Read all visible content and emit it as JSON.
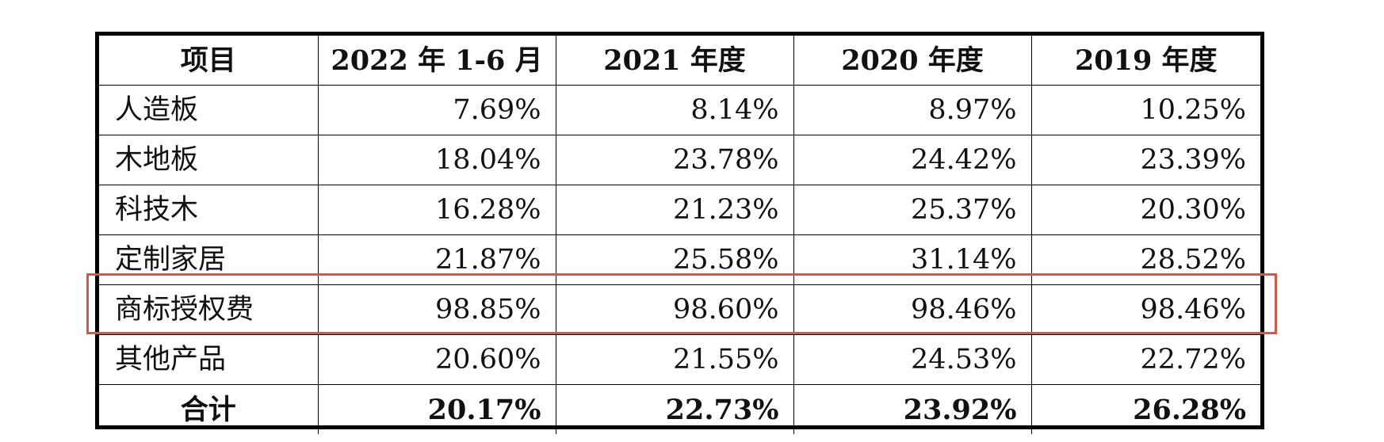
{
  "table": {
    "headers": [
      "项目",
      "2022 年 1-6 月",
      "2021 年度",
      "2020 年度",
      "2019 年度"
    ],
    "rows": [
      {
        "label": "人造板",
        "values": [
          "7.69%",
          "8.14%",
          "8.97%",
          "10.25%"
        ]
      },
      {
        "label": "木地板",
        "values": [
          "18.04%",
          "23.78%",
          "24.42%",
          "23.39%"
        ]
      },
      {
        "label": "科技木",
        "values": [
          "16.28%",
          "21.23%",
          "25.37%",
          "20.30%"
        ]
      },
      {
        "label": "定制家居",
        "values": [
          "21.87%",
          "25.58%",
          "31.14%",
          "28.52%"
        ]
      },
      {
        "label": "商标授权费",
        "values": [
          "98.85%",
          "98.60%",
          "98.46%",
          "98.46%"
        ]
      },
      {
        "label": "其他产品",
        "values": [
          "20.60%",
          "21.55%",
          "24.53%",
          "22.72%"
        ]
      }
    ],
    "total": {
      "label": "合计",
      "values": [
        "20.17%",
        "22.73%",
        "23.92%",
        "26.28%"
      ]
    }
  },
  "highlight": {
    "row_label": "商标授权费",
    "color": "#e2533f"
  }
}
